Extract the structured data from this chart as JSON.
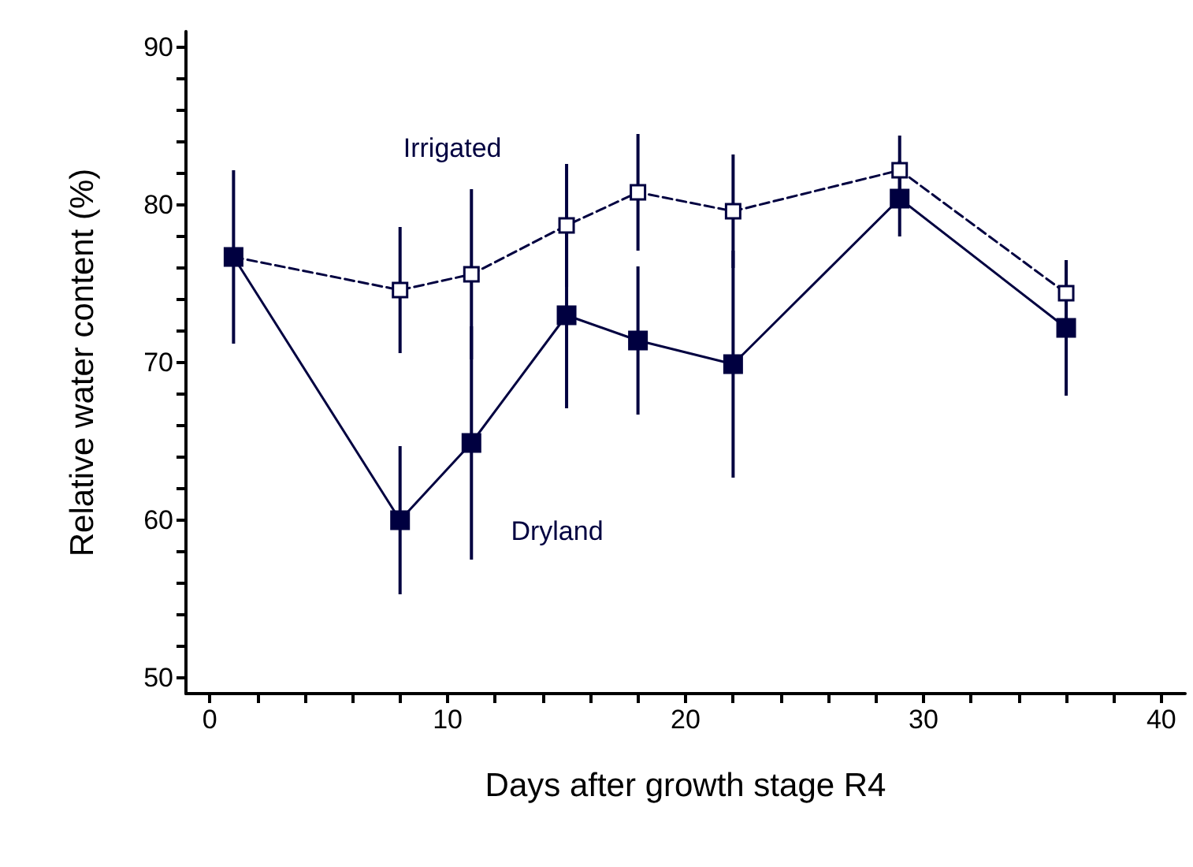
{
  "chart_data": {
    "type": "line",
    "xlabel": "Days after growth stage R4",
    "ylabel": "Relative water content (%)",
    "x": [
      1,
      8,
      11,
      15,
      18,
      22,
      29,
      36
    ],
    "series": [
      {
        "name": "Irrigated",
        "color": "#000040",
        "marker": "square",
        "line_style": "dashed",
        "values": [
          76.7,
          74.6,
          75.6,
          78.7,
          80.8,
          79.6,
          82.2,
          74.4
        ],
        "errors": [
          null,
          4.0,
          5.4,
          3.9,
          3.7,
          3.6,
          2.2,
          2.1
        ]
      },
      {
        "name": "Dryland",
        "color": "#000040",
        "marker": "square",
        "line_style": "solid",
        "values": [
          76.7,
          60.0,
          64.9,
          73.0,
          71.4,
          69.9,
          80.4,
          72.2
        ],
        "errors": [
          5.5,
          4.7,
          7.4,
          5.9,
          4.7,
          7.2,
          2.4,
          4.3
        ]
      }
    ],
    "xlim": [
      -1,
      41
    ],
    "xticks": [
      0,
      {
        "value": 2,
        "label": null
      },
      {
        "value": 4,
        "label": null
      },
      {
        "value": 6,
        "label": null
      },
      {
        "value": 8,
        "label": null
      },
      10,
      {
        "value": 12,
        "label": null
      },
      {
        "value": 14,
        "label": null
      },
      {
        "value": 16,
        "label": null
      },
      {
        "value": 18,
        "label": null
      },
      20,
      {
        "value": 22,
        "label": null
      },
      {
        "value": 24,
        "label": null
      },
      {
        "value": 26,
        "label": null
      },
      {
        "value": 28,
        "label": null
      },
      30,
      {
        "value": 32,
        "label": null
      },
      {
        "value": 34,
        "label": null
      },
      {
        "value": 36,
        "label": null
      },
      {
        "value": 38,
        "label": null
      },
      40
    ],
    "ylim": [
      49,
      91
    ],
    "yticks": [
      50,
      {
        "value": 52,
        "label": null
      },
      {
        "value": 54,
        "label": null
      },
      {
        "value": 56,
        "label": null
      },
      {
        "value": 58,
        "label": null
      },
      60,
      {
        "value": 62,
        "label": null
      },
      {
        "value": 64,
        "label": null
      },
      {
        "value": 66,
        "label": null
      },
      {
        "value": 68,
        "label": null
      },
      70,
      {
        "value": 72,
        "label": null
      },
      {
        "value": 74,
        "label": null
      },
      {
        "value": 76,
        "label": null
      },
      {
        "value": 78,
        "label": null
      },
      80,
      {
        "value": 82,
        "label": null
      },
      {
        "value": 84,
        "label": null
      },
      {
        "value": 86,
        "label": null
      },
      {
        "value": 88,
        "label": null
      },
      90
    ],
    "grid": false,
    "legend": false
  }
}
